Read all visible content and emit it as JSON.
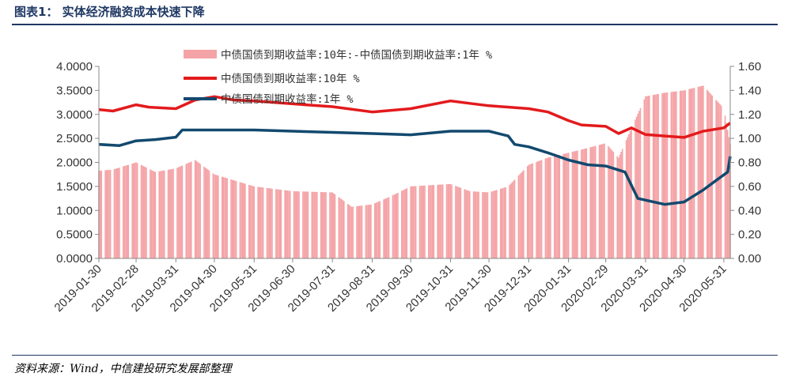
{
  "header": {
    "title": "图表1：  实体经济融资成本快速下降"
  },
  "footer": {
    "source": "资料来源：Wind，中信建投研究发展部整理"
  },
  "colors": {
    "spread": "#f4a3a6",
    "y10": "#e31a1c",
    "y1": "#12496f",
    "rule": "#1f3864"
  },
  "chart_data": {
    "type": "line",
    "legend_position": "top-center",
    "grid": false,
    "x_ticks": [
      "2019-01-30",
      "2019-02-28",
      "2019-03-31",
      "2019-04-30",
      "2019-05-31",
      "2019-06-30",
      "2019-07-31",
      "2019-08-31",
      "2019-09-30",
      "2019-10-31",
      "2019-11-30",
      "2019-12-31",
      "2020-01-31",
      "2020-02-29",
      "2020-03-31",
      "2020-04-30",
      "2020-05-31"
    ],
    "x_range": [
      "2019-01-30",
      "2020-06-05"
    ],
    "y_left": {
      "min": 0,
      "max": 4,
      "ticks": [
        "0.0000",
        "0.5000",
        "1.0000",
        "1.5000",
        "2.0000",
        "2.5000",
        "3.0000",
        "3.5000",
        "4.0000"
      ]
    },
    "y_right": {
      "min": 0,
      "max": 1.6,
      "ticks": [
        "0.00",
        "0.20",
        "0.40",
        "0.60",
        "0.80",
        "1.00",
        "1.20",
        "1.40",
        "1.60"
      ]
    },
    "series": [
      {
        "name": "中债国债到期收益率:10年:-中债国债到期收益率:1年 %",
        "kind": "bar",
        "axis": "right",
        "points": [
          [
            "2019-01-30",
            0.73
          ],
          [
            "2019-02-10",
            0.74
          ],
          [
            "2019-02-28",
            0.8
          ],
          [
            "2019-03-15",
            0.72
          ],
          [
            "2019-03-31",
            0.75
          ],
          [
            "2019-04-15",
            0.82
          ],
          [
            "2019-04-30",
            0.7
          ],
          [
            "2019-05-31",
            0.6
          ],
          [
            "2019-06-30",
            0.56
          ],
          [
            "2019-07-31",
            0.55
          ],
          [
            "2019-08-15",
            0.43
          ],
          [
            "2019-08-31",
            0.45
          ],
          [
            "2019-09-15",
            0.52
          ],
          [
            "2019-09-30",
            0.6
          ],
          [
            "2019-10-31",
            0.62
          ],
          [
            "2019-11-15",
            0.56
          ],
          [
            "2019-11-30",
            0.55
          ],
          [
            "2019-12-15",
            0.6
          ],
          [
            "2019-12-31",
            0.78
          ],
          [
            "2020-01-15",
            0.84
          ],
          [
            "2020-01-31",
            0.88
          ],
          [
            "2020-02-15",
            0.92
          ],
          [
            "2020-02-29",
            0.96
          ],
          [
            "2020-03-10",
            0.84
          ],
          [
            "2020-03-31",
            1.35
          ],
          [
            "2020-04-15",
            1.38
          ],
          [
            "2020-04-30",
            1.4
          ],
          [
            "2020-05-15",
            1.44
          ],
          [
            "2020-05-31",
            1.25
          ],
          [
            "2020-06-05",
            0.95
          ]
        ]
      },
      {
        "name": "中债国债到期收益率:10年 %",
        "kind": "line",
        "axis": "left",
        "points": [
          [
            "2019-01-30",
            3.1
          ],
          [
            "2019-02-10",
            3.07
          ],
          [
            "2019-02-28",
            3.2
          ],
          [
            "2019-03-10",
            3.15
          ],
          [
            "2019-03-31",
            3.12
          ],
          [
            "2019-04-15",
            3.3
          ],
          [
            "2019-04-30",
            3.37
          ],
          [
            "2019-05-15",
            3.3
          ],
          [
            "2019-05-31",
            3.28
          ],
          [
            "2019-06-30",
            3.22
          ],
          [
            "2019-07-31",
            3.16
          ],
          [
            "2019-08-31",
            3.05
          ],
          [
            "2019-09-30",
            3.12
          ],
          [
            "2019-10-31",
            3.28
          ],
          [
            "2019-11-15",
            3.23
          ],
          [
            "2019-11-30",
            3.18
          ],
          [
            "2019-12-31",
            3.12
          ],
          [
            "2020-01-15",
            3.05
          ],
          [
            "2020-01-31",
            2.87
          ],
          [
            "2020-02-10",
            2.78
          ],
          [
            "2020-02-29",
            2.75
          ],
          [
            "2020-03-10",
            2.6
          ],
          [
            "2020-03-20",
            2.72
          ],
          [
            "2020-03-31",
            2.58
          ],
          [
            "2020-04-15",
            2.55
          ],
          [
            "2020-04-30",
            2.52
          ],
          [
            "2020-05-15",
            2.65
          ],
          [
            "2020-05-31",
            2.72
          ],
          [
            "2020-06-05",
            2.82
          ]
        ]
      },
      {
        "name": "中债国债到期收益率:1年 %",
        "kind": "line",
        "axis": "right",
        "points": [
          [
            "2019-01-30",
            0.95
          ],
          [
            "2019-02-15",
            0.94
          ],
          [
            "2019-02-28",
            0.98
          ],
          [
            "2019-03-15",
            0.99
          ],
          [
            "2019-03-31",
            1.01
          ],
          [
            "2019-04-05",
            1.07
          ],
          [
            "2019-04-30",
            1.07
          ],
          [
            "2019-05-31",
            1.07
          ],
          [
            "2019-06-30",
            1.06
          ],
          [
            "2019-07-31",
            1.05
          ],
          [
            "2019-08-31",
            1.04
          ],
          [
            "2019-09-30",
            1.03
          ],
          [
            "2019-10-31",
            1.06
          ],
          [
            "2019-11-30",
            1.06
          ],
          [
            "2019-12-15",
            1.02
          ],
          [
            "2019-12-20",
            0.95
          ],
          [
            "2019-12-31",
            0.93
          ],
          [
            "2020-01-15",
            0.88
          ],
          [
            "2020-01-31",
            0.82
          ],
          [
            "2020-02-15",
            0.78
          ],
          [
            "2020-02-29",
            0.77
          ],
          [
            "2020-03-15",
            0.72
          ],
          [
            "2020-03-25",
            0.5
          ],
          [
            "2020-04-15",
            0.45
          ],
          [
            "2020-04-30",
            0.47
          ],
          [
            "2020-05-15",
            0.57
          ],
          [
            "2020-05-25",
            0.65
          ],
          [
            "2020-06-03",
            0.72
          ],
          [
            "2020-06-05",
            0.85
          ]
        ]
      }
    ]
  }
}
